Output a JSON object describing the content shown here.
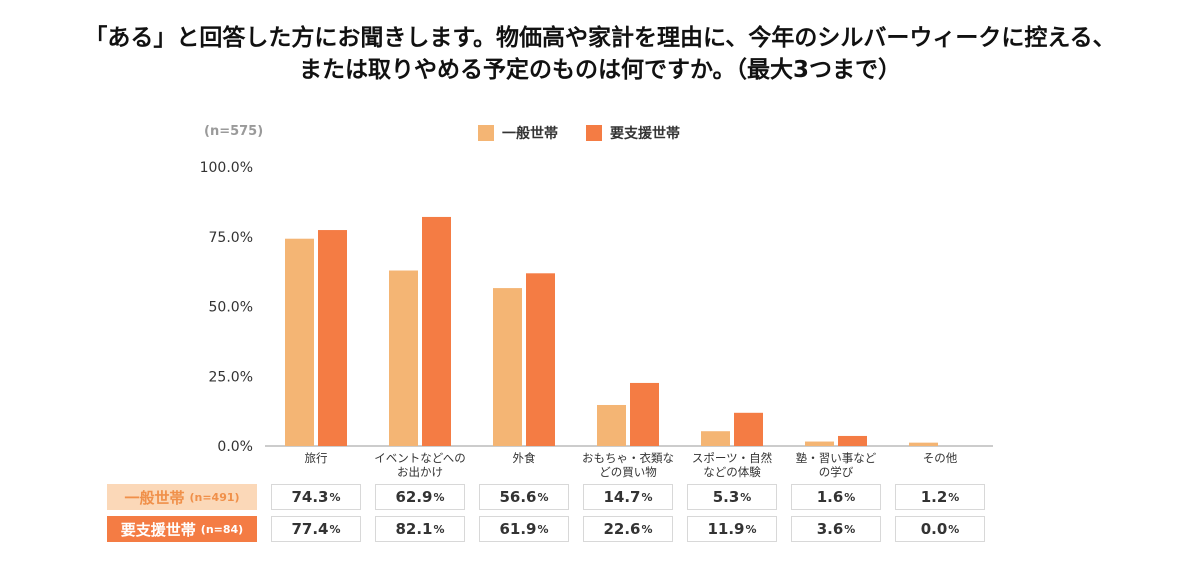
{
  "title": {
    "line1": "「ある」と回答した方にお聞きします。物価高や家計を理由に、今年のシルバーウィークに控える、",
    "line2": "または取りやめる予定のものは何ですか。（最大3つまで）"
  },
  "sample_note": "(n=575)",
  "colors": {
    "general": "#f4b574",
    "support": "#f47c44"
  },
  "legend": [
    {
      "label": "一般世帯",
      "color": "#f4b574"
    },
    {
      "label": "要支援世帯",
      "color": "#f47c44"
    }
  ],
  "chart_data": {
    "type": "bar",
    "categories": [
      [
        "旅行"
      ],
      [
        "イベントなどへの",
        "お出かけ"
      ],
      [
        "外食"
      ],
      [
        "おもちゃ・衣類な",
        "どの買い物"
      ],
      [
        "スポーツ・自然",
        "などの体験"
      ],
      [
        "塾・習い事など",
        "の学び"
      ],
      [
        "その他"
      ]
    ],
    "series": [
      {
        "name": "一般世帯",
        "values": [
          74.3,
          62.9,
          56.6,
          14.7,
          5.3,
          1.6,
          1.2
        ]
      },
      {
        "name": "要支援世帯",
        "values": [
          77.4,
          82.1,
          61.9,
          22.6,
          11.9,
          3.6,
          0.0
        ]
      }
    ],
    "ylim": [
      0,
      100
    ],
    "yticks": [
      "0.0%",
      "25.0%",
      "50.0%",
      "75.0%",
      "100.0%"
    ],
    "legend_position": "top",
    "grid": false
  },
  "table": {
    "rows": [
      {
        "label": "一般世帯",
        "n": "(n=491)",
        "values": [
          "74.3",
          "62.9",
          "56.6",
          "14.7",
          "5.3",
          "1.6",
          "1.2"
        ],
        "bg": "#fbd8b8",
        "fg": "#f0904a"
      },
      {
        "label": "要支援世帯",
        "n": "(n=84)",
        "values": [
          "77.4",
          "82.1",
          "61.9",
          "22.6",
          "11.9",
          "3.6",
          "0.0"
        ],
        "bg": "#f47c44",
        "fg": "#ffffff"
      }
    ],
    "pct": "%"
  }
}
